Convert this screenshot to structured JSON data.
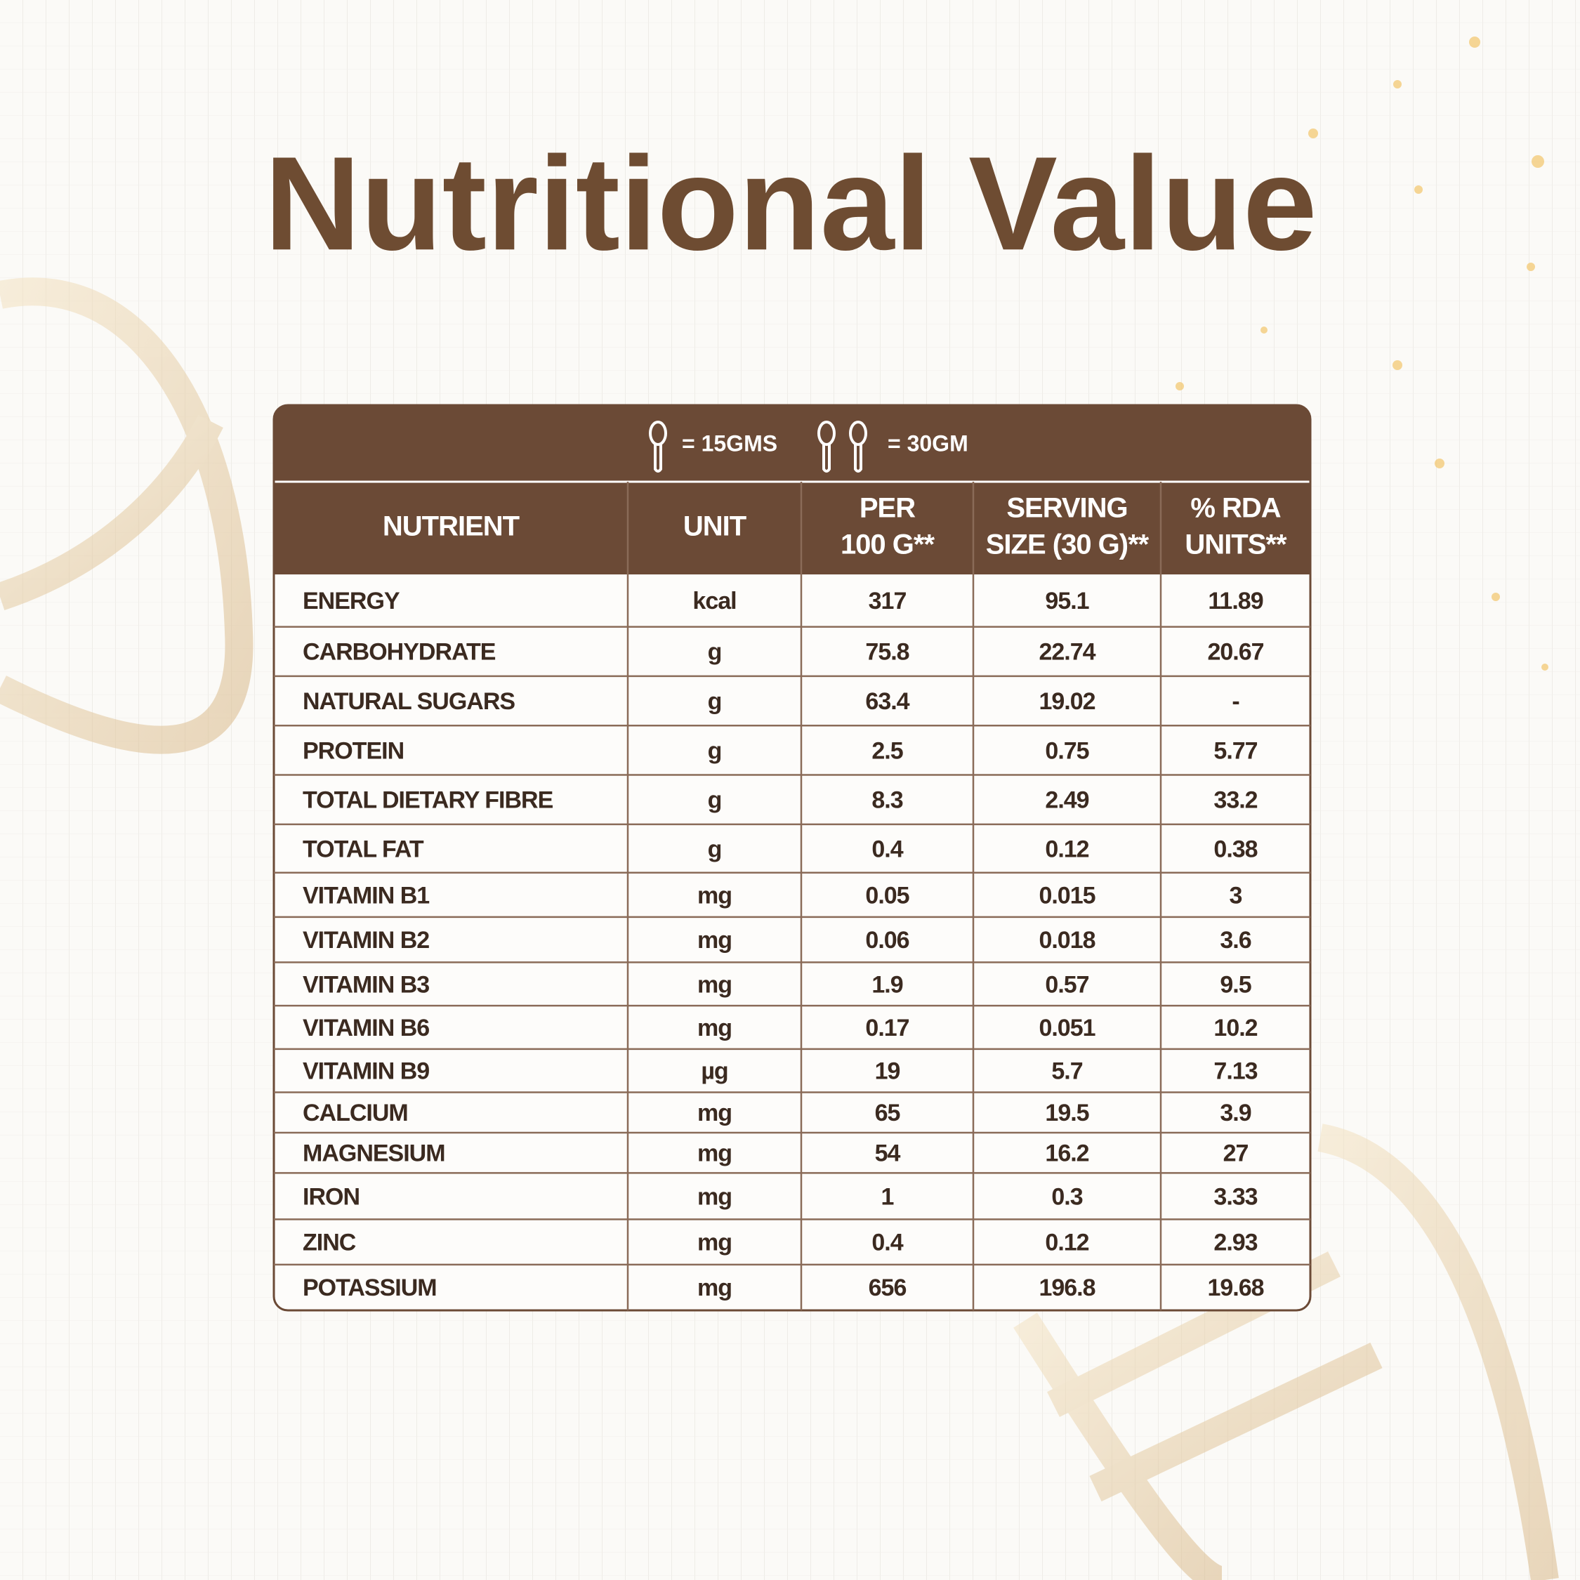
{
  "title": "Nutritional Value",
  "legend": [
    {
      "label": "= 15GMS"
    },
    {
      "label": "= 30GM"
    }
  ],
  "table": {
    "header": [
      [
        "NUTRIENT"
      ],
      [
        "UNIT"
      ],
      [
        "PER",
        "100 G**"
      ],
      [
        "SERVING",
        "SIZE (30 G)**"
      ],
      [
        "% RDA",
        "UNITS**"
      ]
    ],
    "rows": [
      [
        "ENERGY",
        "kcal",
        "317",
        "95.1",
        "11.89"
      ],
      [
        "CARBOHYDRATE",
        "g",
        "75.8",
        "22.74",
        "20.67"
      ],
      [
        "NATURAL SUGARS",
        "g",
        "63.4",
        "19.02",
        "-"
      ],
      [
        "PROTEIN",
        "g",
        "2.5",
        "0.75",
        "5.77"
      ],
      [
        "TOTAL DIETARY FIBRE",
        "g",
        "8.3",
        "2.49",
        "33.2"
      ],
      [
        "TOTAL FAT",
        "g",
        "0.4",
        "0.12",
        "0.38"
      ],
      [
        "VITAMIN B1",
        "mg",
        "0.05",
        "0.015",
        "3"
      ],
      [
        "VITAMIN B2",
        "mg",
        "0.06",
        "0.018",
        "3.6"
      ],
      [
        "VITAMIN B3",
        "mg",
        "1.9",
        "0.57",
        "9.5"
      ],
      [
        "VITAMIN B6",
        "mg",
        "0.17",
        "0.051",
        "10.2"
      ],
      [
        "VITAMIN B9",
        "µg",
        "19",
        "5.7",
        "7.13"
      ],
      [
        "CALCIUM",
        "mg",
        "65",
        "19.5",
        "3.9"
      ],
      [
        "MAGNESIUM",
        "mg",
        "54",
        "16.2",
        "27"
      ],
      [
        "IRON",
        "mg",
        "1",
        "0.3",
        "3.33"
      ],
      [
        "ZINC",
        "mg",
        "0.4",
        "0.12",
        "2.93"
      ],
      [
        "POTASSIUM",
        "mg",
        "656",
        "196.8",
        "19.68"
      ]
    ]
  }
}
